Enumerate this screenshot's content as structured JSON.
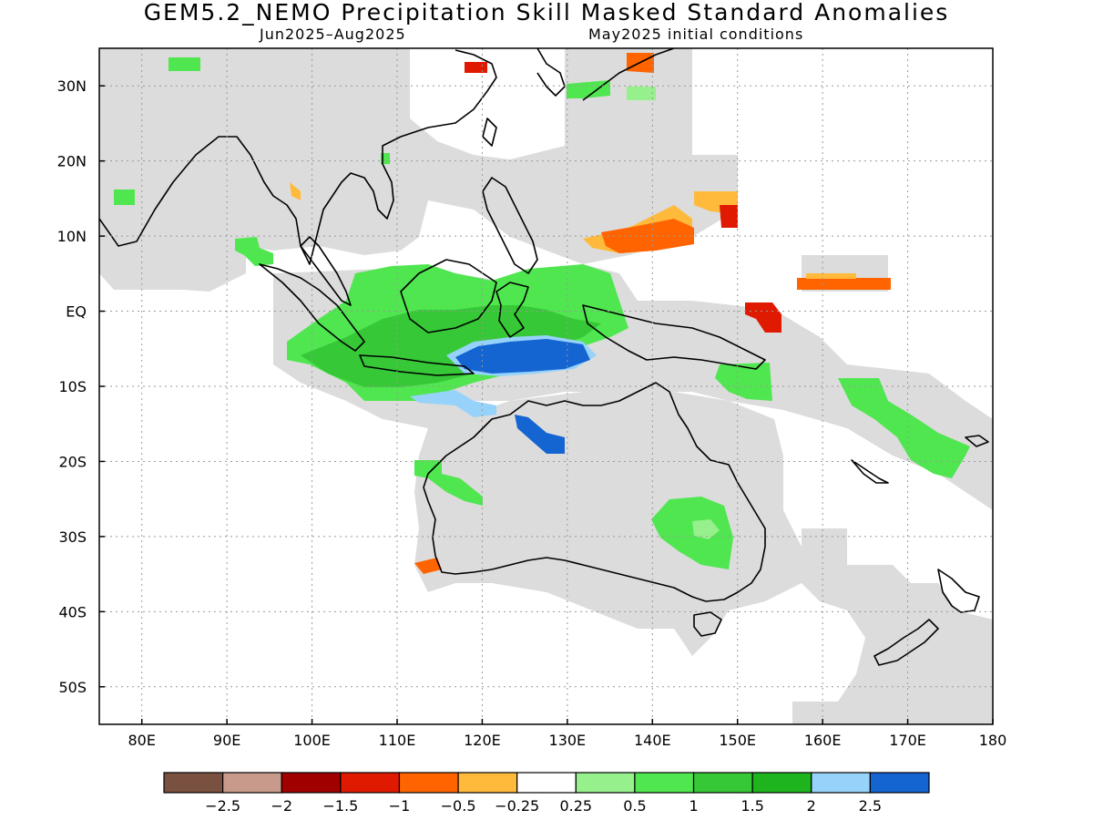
{
  "title": "GEM5.2_NEMO Precipitation Skill Masked Standard Anomalies",
  "subtitle_left": "Jun2025–Aug2025",
  "subtitle_right": "May2025 initial conditions",
  "map_extent": {
    "lon": [
      75,
      180
    ],
    "lat": [
      -55,
      35
    ]
  },
  "lon_ticks": [
    {
      "value": 80,
      "label": "80E"
    },
    {
      "value": 90,
      "label": "90E"
    },
    {
      "value": 100,
      "label": "100E"
    },
    {
      "value": 110,
      "label": "110E"
    },
    {
      "value": 120,
      "label": "120E"
    },
    {
      "value": 130,
      "label": "130E"
    },
    {
      "value": 140,
      "label": "140E"
    },
    {
      "value": 150,
      "label": "150E"
    },
    {
      "value": 160,
      "label": "160E"
    },
    {
      "value": 170,
      "label": "170E"
    },
    {
      "value": 180,
      "label": "180"
    }
  ],
  "lat_ticks": [
    {
      "value": 30,
      "label": "30N"
    },
    {
      "value": 20,
      "label": "20N"
    },
    {
      "value": 10,
      "label": "10N"
    },
    {
      "value": 0,
      "label": "EQ"
    },
    {
      "value": -10,
      "label": "10S"
    },
    {
      "value": -20,
      "label": "20S"
    },
    {
      "value": -30,
      "label": "30S"
    },
    {
      "value": -40,
      "label": "40S"
    },
    {
      "value": -50,
      "label": "50S"
    }
  ],
  "grid": true,
  "colors": {
    "mask": "#dcdcdc",
    "grid": "#999999",
    "coast": "#000000"
  },
  "colorbar": {
    "colors": [
      "#7a5040",
      "#c89a8c",
      "#a00000",
      "#e01a00",
      "#ff6400",
      "#ffba3c",
      "#ffffff",
      "#96f08c",
      "#50e650",
      "#36c836",
      "#1eb41e",
      "#96d2fa",
      "#1464d2"
    ],
    "labels": [
      "−2.5",
      "−2",
      "−1.5",
      "−1",
      "−0.5",
      "−0.25",
      "0.25",
      "0.5",
      "1",
      "1.5",
      "2",
      "2.5"
    ]
  }
}
